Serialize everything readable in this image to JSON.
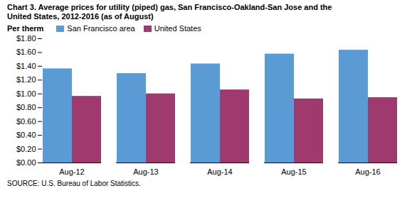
{
  "chart_data": {
    "type": "bar",
    "title": "Chart 3. Average prices for utility (piped) gas, San Francisco-Oakland-San Jose and the\nUnited States, 2012-2016 (as of August)",
    "y_label": "Per therm",
    "annotations": [
      "SOURCE: U.S. Bureau of Labor Statistics."
    ],
    "categories": [
      "Aug-12",
      "Aug-13",
      "Aug-14",
      "Aug-15",
      "Aug-16"
    ],
    "series": [
      {
        "name": "San Francisco area",
        "color": "#5B9BD5",
        "values": [
          1.364,
          1.295,
          1.435,
          1.578,
          1.634
        ]
      },
      {
        "name": "United States",
        "color": "#9E3A6E",
        "values": [
          0.965,
          1.001,
          1.058,
          0.928,
          0.946
        ]
      }
    ],
    "ylim": [
      0.0,
      1.8
    ],
    "yticks": [
      {
        "value": 0.0,
        "label": "$0.00"
      },
      {
        "value": 0.2,
        "label": "$0.20"
      },
      {
        "value": 0.4,
        "label": "$0.40"
      },
      {
        "value": 0.6,
        "label": "$0.60"
      },
      {
        "value": 0.8,
        "label": "$0.80"
      },
      {
        "value": 1.0,
        "label": "$1.00"
      },
      {
        "value": 1.2,
        "label": "$1.20"
      },
      {
        "value": 1.4,
        "label": "$1.40"
      },
      {
        "value": 1.6,
        "label": "$1.60"
      },
      {
        "value": 1.8,
        "label": "$1.80"
      }
    ],
    "grid": false,
    "legend": "upper left"
  }
}
